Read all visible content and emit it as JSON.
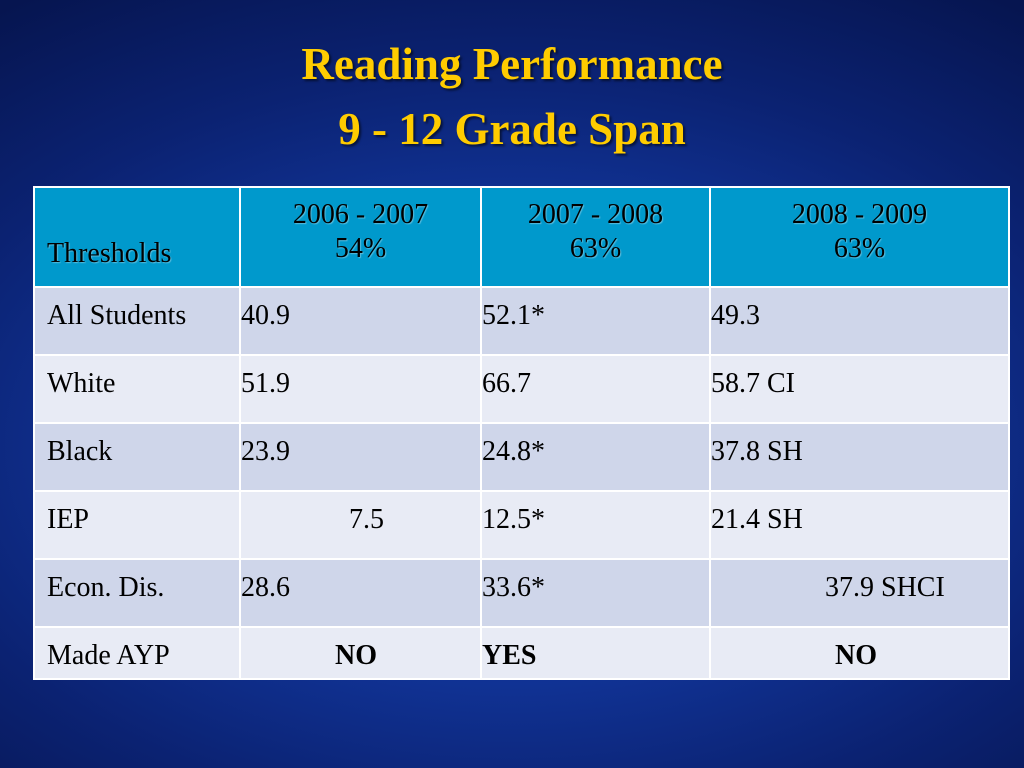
{
  "slide": {
    "title_line1": "Reading Performance",
    "title_line2": "9 - 12 Grade Span"
  },
  "table": {
    "header": {
      "thresholds": "Thresholds",
      "col1_year": "2006 - 2007",
      "col1_pct": "54%",
      "col2_year": "2007 - 2008",
      "col2_pct": "63%",
      "col3_year": "2008 - 2009",
      "col3_pct": "63%"
    },
    "rows": [
      {
        "label": "All Students",
        "v1": "40.9",
        "v2": "52.1*",
        "v3": "49.3"
      },
      {
        "label": "White",
        "v1": "51.9",
        "v2": "66.7",
        "v3": "58.7 CI"
      },
      {
        "label": "Black",
        "v1": "23.9",
        "v2": "24.8*",
        "v3": "37.8 SH"
      },
      {
        "label": "IEP",
        "v1": "7.5",
        "v2": "12.5*",
        "v3": "21.4 SH"
      },
      {
        "label": "Econ. Dis.",
        "v1": "28.6",
        "v2": "33.6*",
        "v3": "37.9 SHCI"
      },
      {
        "label": "Made AYP",
        "v1": "NO",
        "v2": "YES",
        "v3": "NO"
      }
    ]
  },
  "colors": {
    "title": "#ffcc00",
    "header_bg": "#0099cc",
    "red_value": "#ff2a1a",
    "green_value": "#22cc22"
  }
}
